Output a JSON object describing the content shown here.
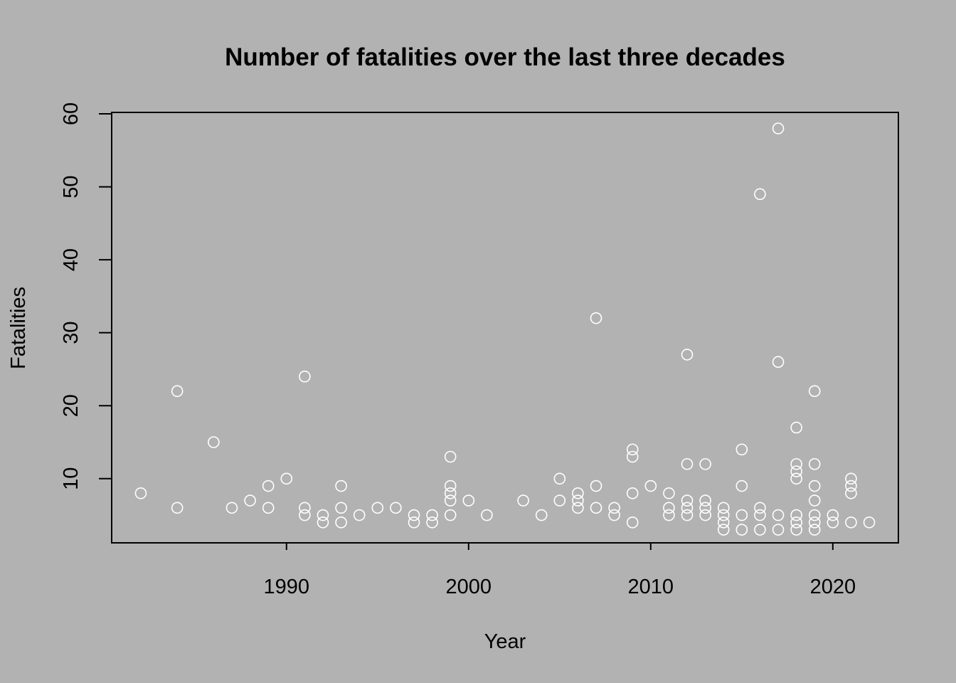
{
  "colors": {
    "background": "#b2b2b2",
    "points": "#ffffff",
    "axes": "#000000"
  },
  "chart_data": {
    "type": "scatter",
    "title": "Number of fatalities over the last three decades",
    "xlabel": "Year",
    "ylabel": "Fatalities",
    "xlim": [
      1980.4,
      2023.6
    ],
    "ylim": [
      1.2,
      60.2
    ],
    "x_ticks": [
      1990,
      2000,
      2010,
      2020
    ],
    "y_ticks": [
      10,
      20,
      30,
      40,
      50,
      60
    ],
    "grid": false,
    "legend": "none",
    "points": [
      [
        1982,
        8
      ],
      [
        1984,
        22
      ],
      [
        1984,
        6
      ],
      [
        1986,
        15
      ],
      [
        1987,
        6
      ],
      [
        1988,
        7
      ],
      [
        1989,
        9
      ],
      [
        1989,
        6
      ],
      [
        1990,
        10
      ],
      [
        1991,
        24
      ],
      [
        1991,
        6
      ],
      [
        1991,
        5
      ],
      [
        1992,
        5
      ],
      [
        1992,
        4
      ],
      [
        1993,
        9
      ],
      [
        1993,
        6
      ],
      [
        1993,
        4
      ],
      [
        1994,
        5
      ],
      [
        1995,
        6
      ],
      [
        1996,
        6
      ],
      [
        1997,
        5
      ],
      [
        1997,
        4
      ],
      [
        1998,
        5
      ],
      [
        1998,
        4
      ],
      [
        1999,
        13
      ],
      [
        1999,
        9
      ],
      [
        1999,
        8
      ],
      [
        1999,
        7
      ],
      [
        1999,
        5
      ],
      [
        2000,
        7
      ],
      [
        2001,
        5
      ],
      [
        2003,
        7
      ],
      [
        2004,
        5
      ],
      [
        2005,
        10
      ],
      [
        2005,
        7
      ],
      [
        2006,
        8
      ],
      [
        2006,
        7
      ],
      [
        2006,
        6
      ],
      [
        2007,
        32
      ],
      [
        2007,
        9
      ],
      [
        2007,
        6
      ],
      [
        2008,
        6
      ],
      [
        2008,
        5
      ],
      [
        2009,
        14
      ],
      [
        2009,
        13
      ],
      [
        2009,
        8
      ],
      [
        2009,
        4
      ],
      [
        2010,
        9
      ],
      [
        2011,
        8
      ],
      [
        2011,
        6
      ],
      [
        2011,
        5
      ],
      [
        2012,
        27
      ],
      [
        2012,
        12
      ],
      [
        2012,
        7
      ],
      [
        2012,
        6
      ],
      [
        2012,
        5
      ],
      [
        2013,
        12
      ],
      [
        2013,
        7
      ],
      [
        2013,
        6
      ],
      [
        2013,
        5
      ],
      [
        2014,
        6
      ],
      [
        2014,
        5
      ],
      [
        2014,
        4
      ],
      [
        2014,
        3
      ],
      [
        2015,
        14
      ],
      [
        2015,
        9
      ],
      [
        2015,
        5
      ],
      [
        2015,
        3
      ],
      [
        2016,
        49
      ],
      [
        2016,
        6
      ],
      [
        2016,
        5
      ],
      [
        2016,
        3
      ],
      [
        2017,
        58
      ],
      [
        2017,
        26
      ],
      [
        2017,
        5
      ],
      [
        2017,
        3
      ],
      [
        2018,
        17
      ],
      [
        2018,
        12
      ],
      [
        2018,
        11
      ],
      [
        2018,
        10
      ],
      [
        2018,
        5
      ],
      [
        2018,
        4
      ],
      [
        2018,
        3
      ],
      [
        2019,
        22
      ],
      [
        2019,
        12
      ],
      [
        2019,
        9
      ],
      [
        2019,
        7
      ],
      [
        2019,
        5
      ],
      [
        2019,
        4
      ],
      [
        2019,
        3
      ],
      [
        2020,
        5
      ],
      [
        2020,
        4
      ],
      [
        2021,
        10
      ],
      [
        2021,
        9
      ],
      [
        2021,
        8
      ],
      [
        2021,
        4
      ],
      [
        2022,
        4
      ]
    ]
  }
}
